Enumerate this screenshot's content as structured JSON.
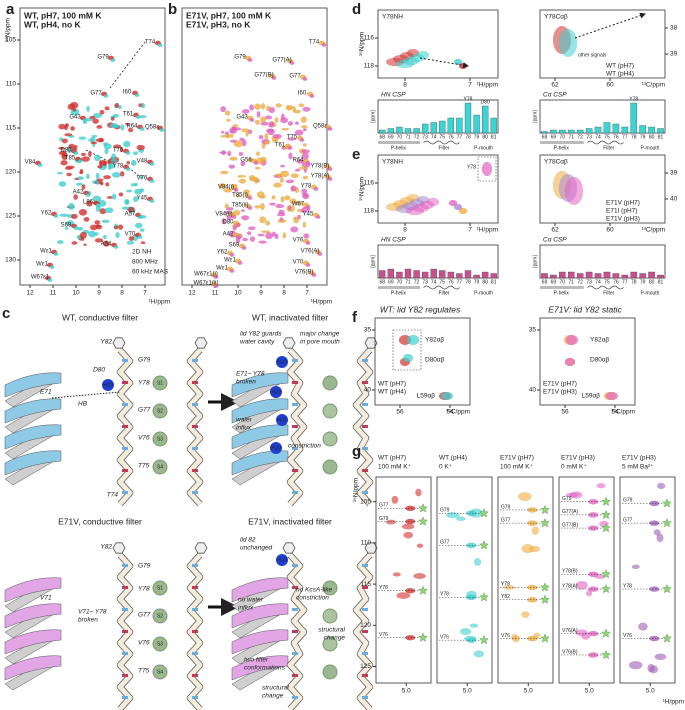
{
  "a": {
    "letter": "a",
    "legend": [
      "WT, pH7, 100 mM K",
      "WT, pH4, no K"
    ],
    "colors": [
      "#d7322f",
      "#3cd3d3"
    ],
    "y_label": "¹⁵N/ppm",
    "x_label": "¹H/ppm",
    "xticks": [
      12,
      11,
      10,
      9,
      8,
      7
    ],
    "yticks": [
      105,
      110,
      115,
      120,
      125,
      130
    ],
    "notes": [
      "2D NH",
      "800 MHz",
      "60 kHz MAS"
    ],
    "peaks": [
      "G79",
      "T74",
      "G77",
      "I60",
      "G43",
      "T61",
      "R64",
      "Q58ε",
      "D80",
      "T85",
      "T75",
      "V84",
      "V48",
      "Y78",
      "A42",
      "V76",
      "L86",
      "Y45",
      "A57",
      "Y62",
      "S69",
      "V70",
      "A54",
      "Wε1",
      "Wε1",
      "W67ε1"
    ]
  },
  "b": {
    "letter": "b",
    "legend": [
      "E71V, pH7, 100 mM K",
      "E71V, pH3, no K"
    ],
    "colors": [
      "#f4ae3d",
      "#e663c6"
    ],
    "x_label": "¹H/ppm",
    "xticks": [
      12,
      11,
      10,
      9,
      8,
      7
    ],
    "peaks": [
      "T74",
      "G79",
      "G77(A)",
      "G77(B)",
      "G77",
      "I60",
      "G43",
      "Q58ε",
      "T75",
      "T61",
      "G56",
      "R64",
      "Y78(B)",
      "Y78(A)",
      "Y78",
      "V84(i)",
      "T85(i)",
      "T85(ii)",
      "V84(ii)",
      "W67",
      "Y45",
      "D80",
      "A42",
      "S69",
      "V76",
      "V76(A)",
      "V70",
      "V76(B)",
      "Y62",
      "Wε1",
      "Wε1",
      "W67ε1(i)",
      "W67ε1(ii)"
    ]
  },
  "c": {
    "letter": "c",
    "titles": [
      "WT, conductive filter",
      "WT, inactivated filter",
      "E71V, conductive filter",
      "E71V, inactivated filter"
    ],
    "sites": [
      "S1",
      "S2",
      "S3",
      "S4"
    ],
    "water": "H₂O",
    "wt_conductive": [
      "Y82",
      "D80",
      "G79",
      "Y78",
      "G77",
      "V76",
      "T75",
      "T74",
      "E71",
      "HB"
    ],
    "wt_inactivated": {
      "lid": [
        "lid Y82 guards",
        "water cavity"
      ],
      "mouth": [
        "major change",
        "in pore mouth"
      ],
      "broken": [
        "E71– Y78",
        "broken"
      ],
      "influx": [
        "water",
        "influx"
      ],
      "constriction": "constriction"
    },
    "e71v_conductive": [
      "Y82",
      "G79",
      "Y78",
      "G77",
      "V76",
      "T75",
      "V71"
    ],
    "e71v_broken": [
      "V71– Y78",
      "broken"
    ],
    "e71v_inactivated": {
      "lid": [
        "lid 82",
        "unchanged"
      ],
      "influx": [
        "no water",
        "influx"
      ],
      "constriction": [
        "no KcsA-like",
        "constriction"
      ],
      "change_top": [
        "structural",
        "change"
      ],
      "conformations": [
        "two filter",
        "conformations"
      ],
      "change_bottom": [
        "structural",
        "change"
      ]
    }
  },
  "d": {
    "letter": "d",
    "spectra": [
      "Y78NH",
      "Y78Cαβ"
    ],
    "y_label": "¹⁵N/ppm",
    "h_label": "¹H/ppm",
    "c_label": "¹³C/ppm",
    "nh_yticks": [
      116,
      118
    ],
    "nh_xticks": [
      8,
      7
    ],
    "ca_yticks": [
      38,
      39
    ],
    "ca_xticks": [
      62,
      60
    ],
    "legend": [
      "WT (pH7)",
      "WT (pH4)"
    ],
    "colors": [
      "#d7322f",
      "#3cd3d3"
    ],
    "other": "other signals",
    "bar_color": "#3cd3d3",
    "unit": "[ppm]",
    "csp_ylim": [
      0,
      1.1
    ],
    "residues": [
      "68",
      "69",
      "70",
      "71",
      "72",
      "73",
      "74",
      "75",
      "76",
      "77",
      "78",
      "79",
      "80",
      "81"
    ],
    "regions": [
      "P-helix",
      "Filter",
      "P-mouth"
    ],
    "csp": [
      {
        "title": "HN CSP",
        "values": [
          0.1,
          0.15,
          0.2,
          0.15,
          0.15,
          0.3,
          0.35,
          0.4,
          0.5,
          0.5,
          1.0,
          0.6,
          0.9,
          0.5
        ],
        "labels": [
          "Y78",
          "D80"
        ]
      },
      {
        "title": "Cα CSP",
        "values": [
          0.05,
          0.1,
          0.1,
          0.1,
          0.1,
          0.15,
          0.2,
          0.35,
          0.3,
          0.2,
          1.0,
          0.25,
          0.2,
          0.15
        ],
        "labels": [
          "Y78"
        ]
      }
    ]
  },
  "e": {
    "letter": "e",
    "spectra": [
      "Y78NH",
      "Y78Cαβ"
    ],
    "y_label": "¹⁵N/ppm",
    "h_label": "¹H/ppm",
    "c_label": "¹³C/ppm",
    "nh_yticks": [
      116,
      118
    ],
    "nh_xticks": [
      8,
      7
    ],
    "ca_yticks": [
      39,
      40
    ],
    "ca_xticks": [
      62,
      60
    ],
    "legend": [
      "E71V (pH7)",
      "E71I (pH7)",
      "E71V (pH3)"
    ],
    "colors": [
      "#f4ae3d",
      "#a78bd8",
      "#e663c6"
    ],
    "inset": "Y78",
    "bar_color": "#c9508f",
    "unit": "[ppm]",
    "csp_ylim": [
      0,
      1.1
    ],
    "residues": [
      "68",
      "69",
      "70",
      "71",
      "72",
      "73",
      "74",
      "75",
      "76",
      "77",
      "78",
      "79",
      "80",
      "81"
    ],
    "regions": [
      "P-helix",
      "Filter",
      "P-mouth"
    ],
    "csp": [
      {
        "title": "HN CSP",
        "values": [
          0.25,
          0.3,
          0.2,
          0.3,
          0.25,
          0.2,
          0.3,
          0.25,
          0.2,
          0.15,
          0.25,
          0.1,
          0.2,
          0.15
        ],
        "labels": []
      },
      {
        "title": "Cα CSP",
        "values": [
          0.15,
          0.1,
          0.2,
          0.2,
          0.15,
          0.2,
          0.15,
          0.2,
          0.15,
          0.1,
          0.2,
          0.15,
          0.2,
          0.1
        ],
        "labels": []
      }
    ]
  },
  "f": {
    "letter": "f",
    "titles": [
      "WT: lid Y82 regulates",
      "E71V: lid Y82 static"
    ],
    "peaks": [
      "Y82αβ",
      "D80αβ",
      "L59αβ"
    ],
    "legend_wt": [
      "WT (pH7)",
      "WT (pH4)"
    ],
    "colors_wt": [
      "#d7322f",
      "#3cd3d3"
    ],
    "legend_e": [
      "E71V (pH7)",
      "E71V (pH3)"
    ],
    "colors_e": [
      "#f4ae3d",
      "#e663c6"
    ],
    "yticks": [
      35,
      40
    ],
    "xticks": [
      56,
      54
    ],
    "x_label": "¹³C/ppm"
  },
  "g": {
    "letter": "g",
    "columns": [
      {
        "condition": "WT (pH7)",
        "ion": "100 mM K⁺",
        "color": "#d7322f",
        "peaks": [
          "G77",
          "G79",
          "Y78",
          "V76"
        ]
      },
      {
        "condition": "WT (pH4)",
        "ion": "0 K⁺",
        "color": "#3cd3d3",
        "peaks": [
          "G79",
          "G77",
          "Y78",
          "V76"
        ]
      },
      {
        "condition": "E71V (pH7)",
        "ion": "100 mM K⁺",
        "color": "#f4ae3d",
        "peaks": [
          "G79",
          "G77",
          "Y78",
          "Y82",
          "V76"
        ]
      },
      {
        "condition": "E71V (pH3)",
        "ion": "0 mM K⁺",
        "color": "#e663c6",
        "peaks": [
          "G79",
          "G77(A)",
          "G77(B)",
          "Y78(B)",
          "Y78(A)",
          "V76(A)",
          "V76(B)"
        ]
      },
      {
        "condition": "E71V (pH3)",
        "ion": "5 mM Ba²⁺",
        "color": "#a060b8",
        "peaks": [
          "G79",
          "G77",
          "Y78",
          "V76"
        ]
      }
    ],
    "yticks": [
      105,
      110,
      115,
      120,
      125
    ],
    "ylim": [
      102,
      127
    ],
    "xtick": {
      "value": 5,
      "label": "5.0"
    },
    "y_label": "¹⁵N/ppm",
    "x_label": "¹H/ppm"
  }
}
